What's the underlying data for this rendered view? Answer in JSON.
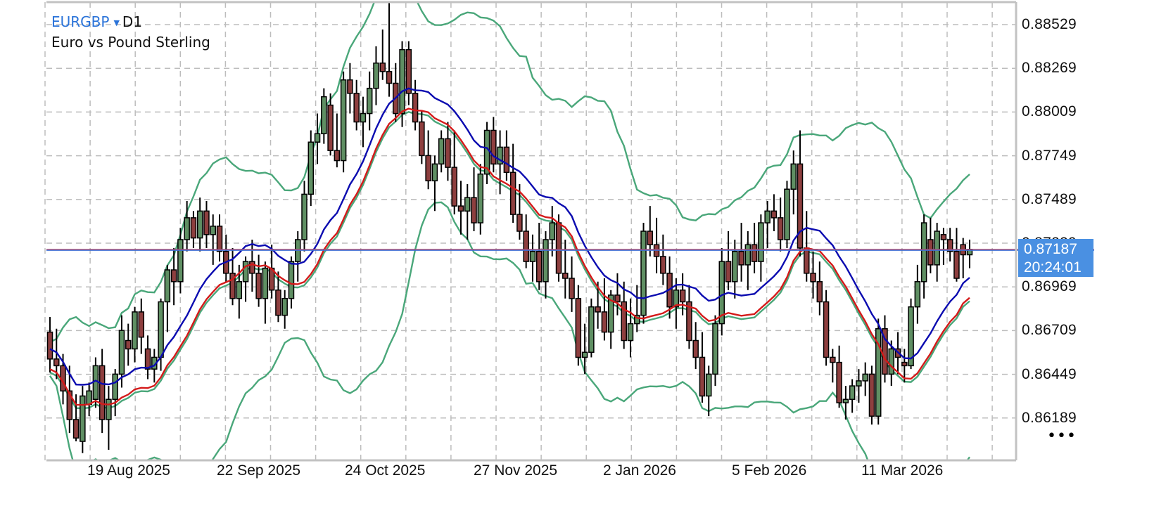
{
  "header": {
    "symbol": "EURGBP",
    "caret": "▼",
    "timeframe": "D1",
    "description": "Euro vs Pound Sterling"
  },
  "current_price": {
    "bid": "0.87187",
    "countdown": "20:24:01",
    "hidden_label": "0.87229"
  },
  "more_menu": {
    "icon": "more-horizontal-icon",
    "label": "•••"
  },
  "colors": {
    "bull": "#5f8f63",
    "bear": "#8e3f3f",
    "outline": "#000000",
    "ma_fast": "#0b0bb0",
    "ma_slow": "#d41a1a",
    "bands": "#4aa77a",
    "price_line": "#3f6fd4",
    "ask_line": "#d04050",
    "grid": "#bdbdbd",
    "frame": "#c2c2c2",
    "price_box": "#4a90e2"
  },
  "chart_data": {
    "type": "candlestick",
    "title": "EURGBP, D1 — Euro vs Pound Sterling",
    "xlabel": "",
    "ylabel": "",
    "ylim": [
      0.8598,
      0.8864
    ],
    "grid": true,
    "y_ticks": [
      "0.88529",
      "0.88269",
      "0.88009",
      "0.87749",
      "0.87489",
      "0.87229",
      "0.86969",
      "0.86709",
      "0.86449",
      "0.86189"
    ],
    "x_ticks": [
      "19 Aug 2025",
      "22 Sep 2025",
      "24 Oct 2025",
      "27 Nov 2025",
      "2 Jan 2026",
      "5 Feb 2026",
      "11 Mar 2026"
    ],
    "indicators": [
      "Moving average (blue)",
      "Moving average (red)",
      "Bollinger bands wide (green)",
      "Bollinger bands narrow (green)"
    ],
    "last_price": 0.87187,
    "candles": [
      [
        0.867,
        0.8679,
        0.8646,
        0.8654
      ],
      [
        0.8654,
        0.8672,
        0.8642,
        0.865
      ],
      [
        0.865,
        0.8657,
        0.8627,
        0.8635
      ],
      [
        0.8635,
        0.865,
        0.861,
        0.8618
      ],
      [
        0.8618,
        0.8633,
        0.8605,
        0.8607
      ],
      [
        0.8605,
        0.8638,
        0.8598,
        0.8632
      ],
      [
        0.8627,
        0.864,
        0.862,
        0.8635
      ],
      [
        0.863,
        0.8655,
        0.8625,
        0.865
      ],
      [
        0.865,
        0.866,
        0.861,
        0.8618
      ],
      [
        0.8618,
        0.8638,
        0.86,
        0.863
      ],
      [
        0.863,
        0.8648,
        0.862,
        0.8645
      ],
      [
        0.8645,
        0.868,
        0.8637,
        0.8671
      ],
      [
        0.8665,
        0.8675,
        0.865,
        0.866
      ],
      [
        0.866,
        0.8685,
        0.8652,
        0.8682
      ],
      [
        0.8682,
        0.869,
        0.8657,
        0.8667
      ],
      [
        0.866,
        0.8668,
        0.8642,
        0.8648
      ],
      [
        0.8648,
        0.866,
        0.864,
        0.8655
      ],
      [
        0.8655,
        0.869,
        0.8647,
        0.8688
      ],
      [
        0.8688,
        0.871,
        0.867,
        0.8707
      ],
      [
        0.8707,
        0.872,
        0.8686,
        0.87
      ],
      [
        0.87,
        0.8732,
        0.8693,
        0.8725
      ],
      [
        0.8725,
        0.8748,
        0.8718,
        0.8738
      ],
      [
        0.8738,
        0.8742,
        0.872,
        0.8726
      ],
      [
        0.8726,
        0.875,
        0.8718,
        0.8742
      ],
      [
        0.8742,
        0.8748,
        0.872,
        0.8728
      ],
      [
        0.8728,
        0.874,
        0.871,
        0.8733
      ],
      [
        0.8733,
        0.874,
        0.8712,
        0.8718
      ],
      [
        0.8718,
        0.8728,
        0.87,
        0.8705
      ],
      [
        0.8705,
        0.872,
        0.8686,
        0.869
      ],
      [
        0.869,
        0.871,
        0.8678,
        0.87
      ],
      [
        0.87,
        0.8715,
        0.8688,
        0.8712
      ],
      [
        0.8712,
        0.8725,
        0.8694,
        0.8705
      ],
      [
        0.8705,
        0.8716,
        0.8685,
        0.869
      ],
      [
        0.869,
        0.8712,
        0.8675,
        0.8708
      ],
      [
        0.8708,
        0.8722,
        0.869,
        0.8695
      ],
      [
        0.8695,
        0.8706,
        0.8676,
        0.868
      ],
      [
        0.868,
        0.8695,
        0.8672,
        0.869
      ],
      [
        0.869,
        0.8715,
        0.8684,
        0.8712
      ],
      [
        0.8712,
        0.873,
        0.87,
        0.8725
      ],
      [
        0.8725,
        0.876,
        0.8718,
        0.8752
      ],
      [
        0.8752,
        0.879,
        0.8745,
        0.8783
      ],
      [
        0.8783,
        0.88,
        0.877,
        0.8788
      ],
      [
        0.8788,
        0.8815,
        0.8782,
        0.881
      ],
      [
        0.8805,
        0.8812,
        0.8775,
        0.8778
      ],
      [
        0.8778,
        0.88,
        0.8768,
        0.8772
      ],
      [
        0.8772,
        0.8825,
        0.8765,
        0.882
      ],
      [
        0.882,
        0.883,
        0.88,
        0.8812
      ],
      [
        0.8812,
        0.882,
        0.879,
        0.8795
      ],
      [
        0.8795,
        0.881,
        0.878,
        0.88
      ],
      [
        0.88,
        0.8825,
        0.879,
        0.8815
      ],
      [
        0.8815,
        0.884,
        0.8805,
        0.883
      ],
      [
        0.883,
        0.885,
        0.882,
        0.8825
      ],
      [
        0.8825,
        0.8875,
        0.881,
        0.8818
      ],
      [
        0.8818,
        0.883,
        0.8795,
        0.88
      ],
      [
        0.88,
        0.8843,
        0.8792,
        0.8838
      ],
      [
        0.8838,
        0.8843,
        0.8805,
        0.8812
      ],
      [
        0.8812,
        0.882,
        0.879,
        0.8795
      ],
      [
        0.8795,
        0.8802,
        0.877,
        0.8775
      ],
      [
        0.8775,
        0.879,
        0.8755,
        0.876
      ],
      [
        0.876,
        0.8775,
        0.8742,
        0.877
      ],
      [
        0.877,
        0.879,
        0.8765,
        0.8785
      ],
      [
        0.8785,
        0.8795,
        0.876,
        0.8768
      ],
      [
        0.8768,
        0.879,
        0.874,
        0.8745
      ],
      [
        0.8745,
        0.876,
        0.8728,
        0.8742
      ],
      [
        0.8742,
        0.8758,
        0.8725,
        0.875
      ],
      [
        0.875,
        0.8768,
        0.873,
        0.8735
      ],
      [
        0.8735,
        0.877,
        0.8728,
        0.8764
      ],
      [
        0.8764,
        0.8795,
        0.8758,
        0.879
      ],
      [
        0.879,
        0.8798,
        0.8765,
        0.877
      ],
      [
        0.877,
        0.879,
        0.8752,
        0.878
      ],
      [
        0.878,
        0.879,
        0.876,
        0.8765
      ],
      [
        0.8765,
        0.8782,
        0.8735,
        0.874
      ],
      [
        0.874,
        0.8758,
        0.8725,
        0.873
      ],
      [
        0.873,
        0.874,
        0.8708,
        0.8712
      ],
      [
        0.8712,
        0.8728,
        0.87,
        0.8718
      ],
      [
        0.8718,
        0.8735,
        0.8695,
        0.87
      ],
      [
        0.87,
        0.873,
        0.869,
        0.8725
      ],
      [
        0.8725,
        0.8745,
        0.8715,
        0.8735
      ],
      [
        0.8735,
        0.874,
        0.87,
        0.8705
      ],
      [
        0.8705,
        0.8725,
        0.869,
        0.8702
      ],
      [
        0.8702,
        0.8715,
        0.8682,
        0.869
      ],
      [
        0.869,
        0.8698,
        0.865,
        0.8655
      ],
      [
        0.8655,
        0.8675,
        0.8645,
        0.8658
      ],
      [
        0.8658,
        0.869,
        0.8655,
        0.8685
      ],
      [
        0.8685,
        0.87,
        0.8672,
        0.8682
      ],
      [
        0.8682,
        0.8702,
        0.8665,
        0.867
      ],
      [
        0.867,
        0.8695,
        0.866,
        0.8692
      ],
      [
        0.8692,
        0.8705,
        0.868,
        0.8688
      ],
      [
        0.8688,
        0.87,
        0.866,
        0.8665
      ],
      [
        0.8665,
        0.869,
        0.8655,
        0.8675
      ],
      [
        0.8675,
        0.8698,
        0.867,
        0.868
      ],
      [
        0.868,
        0.8735,
        0.8675,
        0.873
      ],
      [
        0.873,
        0.8745,
        0.8715,
        0.8722
      ],
      [
        0.8722,
        0.8738,
        0.8705,
        0.8715
      ],
      [
        0.8715,
        0.8728,
        0.8698,
        0.8705
      ],
      [
        0.8705,
        0.8715,
        0.8678,
        0.8685
      ],
      [
        0.8685,
        0.8702,
        0.8672,
        0.8695
      ],
      [
        0.8695,
        0.8705,
        0.868,
        0.8688
      ],
      [
        0.8688,
        0.8698,
        0.866,
        0.8665
      ],
      [
        0.8665,
        0.8676,
        0.8648,
        0.8655
      ],
      [
        0.8655,
        0.867,
        0.8628,
        0.8632
      ],
      [
        0.8632,
        0.865,
        0.862,
        0.8645
      ],
      [
        0.8645,
        0.868,
        0.8638,
        0.8675
      ],
      [
        0.8675,
        0.872,
        0.8668,
        0.8712
      ],
      [
        0.8712,
        0.873,
        0.8695,
        0.87
      ],
      [
        0.87,
        0.8725,
        0.869,
        0.8718
      ],
      [
        0.8718,
        0.8735,
        0.87,
        0.871
      ],
      [
        0.871,
        0.873,
        0.8695,
        0.8722
      ],
      [
        0.8722,
        0.8735,
        0.8705,
        0.8712
      ],
      [
        0.8712,
        0.874,
        0.87,
        0.8735
      ],
      [
        0.8735,
        0.8748,
        0.872,
        0.8742
      ],
      [
        0.8742,
        0.8752,
        0.873,
        0.8738
      ],
      [
        0.8738,
        0.875,
        0.8718,
        0.8725
      ],
      [
        0.8725,
        0.876,
        0.872,
        0.8755
      ],
      [
        0.8755,
        0.8778,
        0.874,
        0.877
      ],
      [
        0.877,
        0.879,
        0.8715,
        0.872
      ],
      [
        0.872,
        0.8742,
        0.87,
        0.8705
      ],
      [
        0.8705,
        0.8718,
        0.869,
        0.87
      ],
      [
        0.87,
        0.8712,
        0.868,
        0.8688
      ],
      [
        0.8688,
        0.8695,
        0.865,
        0.8655
      ],
      [
        0.8655,
        0.866,
        0.864,
        0.8652
      ],
      [
        0.8652,
        0.8662,
        0.8625,
        0.8628
      ],
      [
        0.8628,
        0.8638,
        0.8618,
        0.863
      ],
      [
        0.863,
        0.8642,
        0.8622,
        0.8638
      ],
      [
        0.8638,
        0.8648,
        0.8628,
        0.8641
      ],
      [
        0.8641,
        0.8652,
        0.8632,
        0.8645
      ],
      [
        0.8645,
        0.865,
        0.8615,
        0.862
      ],
      [
        0.862,
        0.8678,
        0.8615,
        0.8672
      ],
      [
        0.8672,
        0.868,
        0.864,
        0.8645
      ],
      [
        0.8645,
        0.8665,
        0.8638,
        0.866
      ],
      [
        0.866,
        0.867,
        0.8645,
        0.8655
      ],
      [
        0.8652,
        0.866,
        0.864,
        0.865
      ],
      [
        0.865,
        0.869,
        0.8648,
        0.8685
      ],
      [
        0.8685,
        0.871,
        0.8675,
        0.87
      ],
      [
        0.87,
        0.874,
        0.869,
        0.8735
      ],
      [
        0.8725,
        0.8738,
        0.8705,
        0.871
      ],
      [
        0.871,
        0.8735,
        0.87,
        0.873
      ],
      [
        0.8728,
        0.8732,
        0.871,
        0.8725
      ],
      [
        0.8725,
        0.8732,
        0.8712,
        0.8718
      ],
      [
        0.8718,
        0.8732,
        0.87,
        0.8702
      ],
      [
        0.8722,
        0.8726,
        0.8702,
        0.8716
      ],
      [
        0.8716,
        0.8725,
        0.8708,
        0.8719
      ]
    ]
  }
}
